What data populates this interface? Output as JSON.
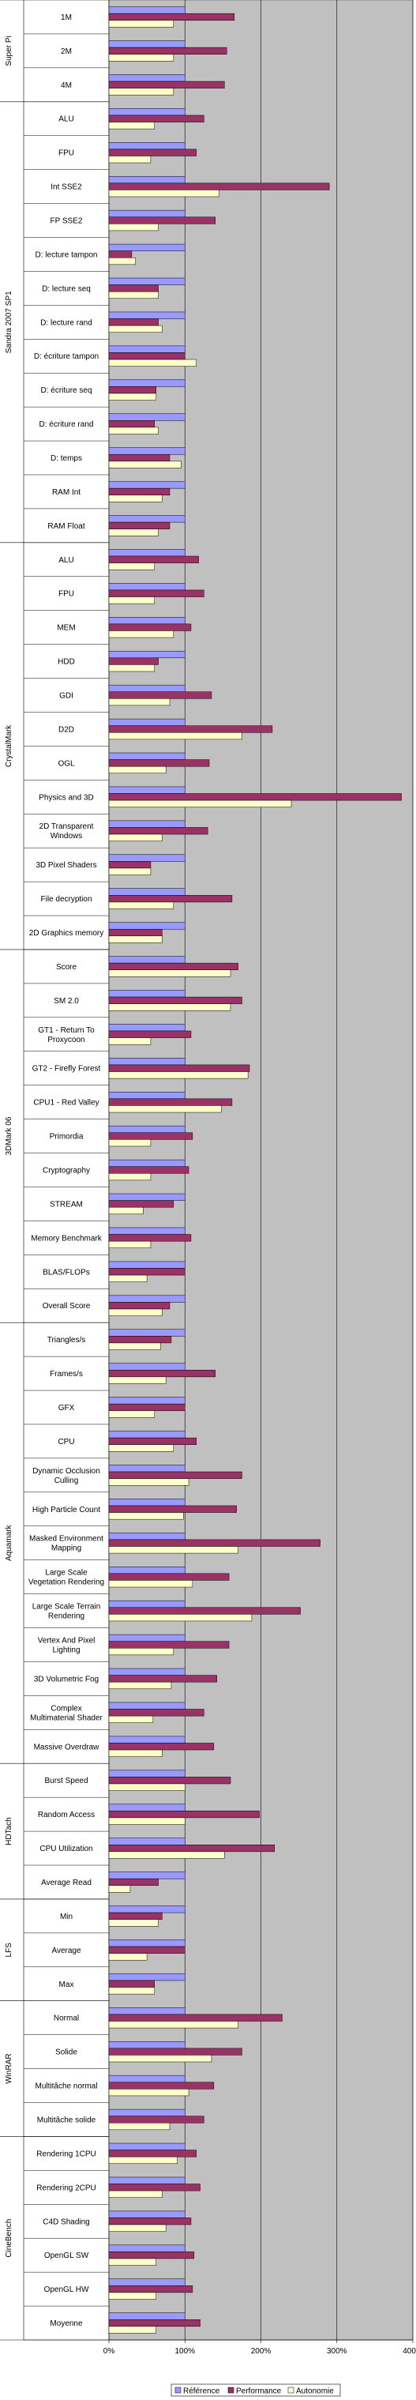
{
  "chart_data": {
    "type": "bar",
    "orientation": "horizontal",
    "xlim": [
      0,
      400
    ],
    "x_ticks": [
      "0%",
      "100%",
      "200%",
      "300%",
      "400%"
    ],
    "grid": true,
    "legend_position": "bottom",
    "colors": {
      "plot_bg": "#c0c0c0",
      "Référence": "#9999ff",
      "Performance": "#993366",
      "Autonomie": "#ffffcc"
    },
    "series_names": [
      "Référence",
      "Performance",
      "Autonomie"
    ],
    "groups": [
      {
        "label": "Super Pi",
        "items": [
          {
            "label": "1M",
            "values": [
              100,
              165,
              85
            ]
          },
          {
            "label": "2M",
            "values": [
              100,
              155,
              85
            ]
          },
          {
            "label": "4M",
            "values": [
              100,
              152,
              85
            ]
          }
        ]
      },
      {
        "label": "Sandra 2007 SP1",
        "items": [
          {
            "label": "ALU",
            "values": [
              100,
              125,
              60
            ]
          },
          {
            "label": "FPU",
            "values": [
              100,
              115,
              55
            ]
          },
          {
            "label": "Int SSE2",
            "values": [
              100,
              290,
              145
            ]
          },
          {
            "label": "FP SSE2",
            "values": [
              100,
              140,
              65
            ]
          },
          {
            "label": "D: lecture tampon",
            "values": [
              100,
              30,
              35
            ]
          },
          {
            "label": "D: lecture seq",
            "values": [
              100,
              65,
              65
            ]
          },
          {
            "label": "D: lecture rand",
            "values": [
              100,
              65,
              70
            ]
          },
          {
            "label": "D: écriture tampon",
            "values": [
              100,
              100,
              115
            ]
          },
          {
            "label": "D: écriture seq",
            "values": [
              100,
              62,
              62
            ]
          },
          {
            "label": "D: écriture rand",
            "values": [
              100,
              60,
              65
            ]
          },
          {
            "label": "D: temps",
            "values": [
              100,
              80,
              95
            ]
          },
          {
            "label": "RAM Int",
            "values": [
              100,
              80,
              70
            ]
          },
          {
            "label": "RAM Float",
            "values": [
              100,
              80,
              65
            ]
          }
        ]
      },
      {
        "label": "CrystalMark",
        "items": [
          {
            "label": "ALU",
            "values": [
              100,
              118,
              60
            ]
          },
          {
            "label": "FPU",
            "values": [
              100,
              125,
              60
            ]
          },
          {
            "label": "MEM",
            "values": [
              100,
              108,
              85
            ]
          },
          {
            "label": "HDD",
            "values": [
              100,
              65,
              60
            ]
          },
          {
            "label": "GDI",
            "values": [
              100,
              135,
              80
            ]
          },
          {
            "label": "D2D",
            "values": [
              100,
              215,
              175
            ]
          },
          {
            "label": "OGL",
            "values": [
              100,
              132,
              75
            ]
          },
          {
            "label": "Physics and 3D",
            "values": [
              100,
              385,
              240
            ]
          },
          {
            "label": "2D Transparent Windows",
            "values": [
              100,
              130,
              70
            ]
          },
          {
            "label": "3D Pixel Shaders",
            "values": [
              100,
              55,
              55
            ]
          },
          {
            "label": "File decryption",
            "values": [
              100,
              162,
              85
            ]
          },
          {
            "label": "2D Graphics memory",
            "values": [
              100,
              70,
              70
            ]
          }
        ]
      },
      {
        "label": "3DMark 06",
        "items": [
          {
            "label": "Score",
            "values": [
              100,
              170,
              160
            ]
          },
          {
            "label": "SM 2.0",
            "values": [
              100,
              175,
              160
            ]
          },
          {
            "label": "GT1 - Return To Proxycoon",
            "values": [
              100,
              108,
              55
            ]
          },
          {
            "label": "GT2 - Firefly Forest",
            "values": [
              100,
              185,
              183
            ]
          },
          {
            "label": "CPU1 - Red Valley",
            "values": [
              100,
              162,
              148
            ]
          },
          {
            "label": "Primordia",
            "values": [
              100,
              110,
              55
            ]
          },
          {
            "label": "Cryptography",
            "values": [
              100,
              105,
              55
            ]
          },
          {
            "label": "STREAM",
            "values": [
              100,
              85,
              45
            ]
          },
          {
            "label": "Memory Benchmark",
            "values": [
              100,
              108,
              55
            ]
          },
          {
            "label": "BLAS/FLOPs",
            "values": [
              100,
              100,
              50
            ]
          },
          {
            "label": "Overall Score",
            "values": [
              100,
              80,
              70
            ]
          }
        ]
      },
      {
        "label": "Aquamark",
        "items": [
          {
            "label": "Triangles/s",
            "values": [
              100,
              82,
              68
            ]
          },
          {
            "label": "Frames/s",
            "values": [
              100,
              140,
              75
            ]
          },
          {
            "label": "GFX",
            "values": [
              100,
              100,
              60
            ]
          },
          {
            "label": "CPU",
            "values": [
              100,
              115,
              85
            ]
          },
          {
            "label": "Dynamic Occlusion Culling",
            "values": [
              100,
              175,
              105
            ]
          },
          {
            "label": "High Particle Count",
            "values": [
              100,
              168,
              98
            ]
          },
          {
            "label": "Masked Environment Mapping",
            "values": [
              100,
              278,
              170
            ]
          },
          {
            "label": "Large Scale Vegetation Rendering",
            "values": [
              100,
              158,
              110
            ]
          },
          {
            "label": "Large Scale Terrain Rendering",
            "values": [
              100,
              252,
              188
            ]
          },
          {
            "label": "Vertex And Pixel Lighting",
            "values": [
              100,
              158,
              85
            ]
          },
          {
            "label": "3D Volumetric Fog",
            "values": [
              100,
              142,
              82
            ]
          },
          {
            "label": "Complex Multimaterial Shader",
            "values": [
              100,
              125,
              58
            ]
          },
          {
            "label": "Massive Overdraw",
            "values": [
              100,
              138,
              70
            ]
          }
        ]
      },
      {
        "label": "HDTach",
        "items": [
          {
            "label": "Burst Speed",
            "values": [
              100,
              160,
              100
            ]
          },
          {
            "label": "Random Access",
            "values": [
              100,
              198,
              100
            ]
          },
          {
            "label": "CPU Utilization",
            "values": [
              100,
              218,
              152
            ]
          },
          {
            "label": "Average Read",
            "values": [
              100,
              65,
              28
            ]
          }
        ]
      },
      {
        "label": "LFS",
        "items": [
          {
            "label": "Min",
            "values": [
              100,
              70,
              65
            ]
          },
          {
            "label": "Average",
            "values": [
              100,
              100,
              50
            ]
          },
          {
            "label": "Max",
            "values": [
              100,
              60,
              60
            ]
          }
        ]
      },
      {
        "label": "WinRAR",
        "items": [
          {
            "label": "Normal",
            "values": [
              100,
              228,
              170
            ]
          },
          {
            "label": "Solide",
            "values": [
              100,
              175,
              135
            ]
          },
          {
            "label": "Multitâche normal",
            "values": [
              100,
              138,
              105
            ]
          },
          {
            "label": "Multitâche solide",
            "values": [
              100,
              125,
              80
            ]
          }
        ]
      },
      {
        "label": "CineBench",
        "items": [
          {
            "label": "Rendering 1CPU",
            "values": [
              100,
              115,
              90
            ]
          },
          {
            "label": "Rendering 2CPU",
            "values": [
              100,
              120,
              70
            ]
          },
          {
            "label": "C4D Shading",
            "values": [
              100,
              108,
              75
            ]
          },
          {
            "label": "OpenGL SW",
            "values": [
              100,
              112,
              62
            ]
          },
          {
            "label": "OpenGL HW",
            "values": [
              100,
              110,
              62
            ]
          },
          {
            "label": "Moyenne",
            "values": [
              100,
              120,
              62
            ]
          }
        ]
      }
    ]
  }
}
